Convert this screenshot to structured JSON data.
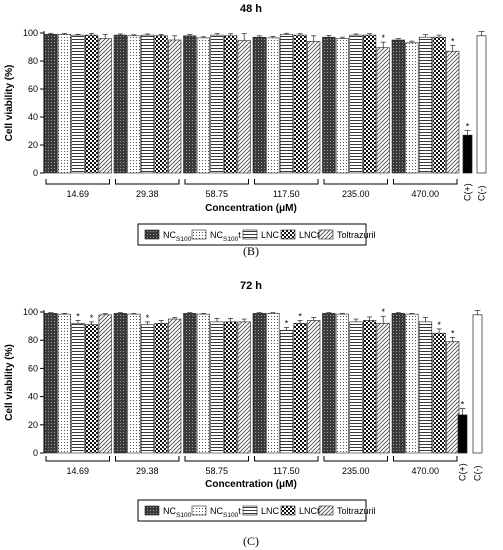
{
  "legend": {
    "items": [
      {
        "main": "NC",
        "sub": "S100",
        "suffix": "",
        "pattern": "dense"
      },
      {
        "main": "NC",
        "sub": "S100",
        "suffix": "t",
        "pattern": "dots"
      },
      {
        "main": "LNC",
        "sub": "",
        "suffix": "",
        "pattern": "hlines"
      },
      {
        "main": "LNCt",
        "sub": "",
        "suffix": "",
        "pattern": "checker"
      },
      {
        "main": "Toltrazuril",
        "sub": "",
        "suffix": "",
        "pattern": "diag"
      }
    ]
  },
  "chart_data": [
    {
      "type": "bar",
      "title": "48 h",
      "panel_label": "(B)",
      "ylabel": "Cell viability (%)",
      "xlabel": "Concentration (μM)",
      "ylim": [
        0,
        100
      ],
      "yticks": [
        0,
        20,
        40,
        60,
        80,
        100
      ],
      "categories": [
        "14.69",
        "29.38",
        "58.75",
        "117.50",
        "235.00",
        "470.00"
      ],
      "series": [
        {
          "name": "NCS100",
          "values": [
            99,
            98.5,
            98,
            97,
            97,
            95
          ],
          "errors": [
            0.8,
            0.8,
            0.8,
            1,
            1.2,
            1
          ],
          "significant": [
            false,
            false,
            false,
            false,
            false,
            false
          ]
        },
        {
          "name": "NCS100t",
          "values": [
            99,
            98,
            96.5,
            96.5,
            96,
            93
          ],
          "errors": [
            0.6,
            0.7,
            0.8,
            1,
            1,
            1.2
          ],
          "significant": [
            false,
            false,
            false,
            false,
            false,
            false
          ]
        },
        {
          "name": "LNC",
          "values": [
            98.5,
            98.5,
            98.5,
            99,
            98.5,
            97
          ],
          "errors": [
            0.6,
            0.8,
            1,
            0.8,
            0.8,
            1.8
          ],
          "significant": [
            false,
            false,
            false,
            false,
            false,
            false
          ]
        },
        {
          "name": "LNCt",
          "values": [
            98.5,
            98,
            98,
            98.5,
            98.5,
            97
          ],
          "errors": [
            1.2,
            1,
            1.5,
            1,
            1,
            1.5
          ],
          "significant": [
            false,
            false,
            false,
            false,
            false,
            false
          ]
        },
        {
          "name": "Toltrazuril",
          "values": [
            96,
            95,
            94.5,
            94,
            89.5,
            87
          ],
          "errors": [
            3,
            3,
            5,
            4,
            4,
            4
          ],
          "significant": [
            false,
            false,
            false,
            false,
            true,
            true
          ]
        }
      ],
      "controls": [
        {
          "label": "C(+)",
          "value": 27,
          "error": 3.5,
          "significant": true,
          "fill": "#000000"
        },
        {
          "label": "C(-)",
          "value": 98,
          "error": 3,
          "significant": false,
          "fill": "#ffffff"
        }
      ]
    },
    {
      "type": "bar",
      "title": "72 h",
      "panel_label": "(C)",
      "ylabel": "Cell viability (%)",
      "xlabel": "Concentration (μM)",
      "ylim": [
        0,
        100
      ],
      "yticks": [
        0,
        20,
        40,
        60,
        80,
        100
      ],
      "categories": [
        "14.69",
        "29.38",
        "58.75",
        "117.50",
        "235.00",
        "470.00"
      ],
      "series": [
        {
          "name": "NCS100",
          "values": [
            99,
            99,
            99,
            99,
            99,
            99
          ],
          "errors": [
            0.5,
            0.5,
            0.5,
            0.5,
            0.5,
            0.5
          ],
          "significant": [
            false,
            false,
            false,
            false,
            false,
            false
          ]
        },
        {
          "name": "NCS100t",
          "values": [
            98.5,
            98.5,
            98.5,
            99,
            98.5,
            98.5
          ],
          "errors": [
            0.5,
            0.5,
            0.5,
            0.5,
            0.5,
            0.5
          ],
          "significant": [
            false,
            false,
            false,
            false,
            false,
            false
          ]
        },
        {
          "name": "LNC",
          "values": [
            92,
            91,
            93,
            87,
            93,
            93
          ],
          "errors": [
            2,
            2,
            2.5,
            2,
            2,
            3
          ],
          "significant": [
            true,
            true,
            false,
            true,
            false,
            false
          ]
        },
        {
          "name": "LNCt",
          "values": [
            91,
            92,
            93,
            92,
            94,
            85
          ],
          "errors": [
            2,
            2,
            2.5,
            2,
            2.5,
            3
          ],
          "significant": [
            true,
            false,
            false,
            true,
            false,
            true
          ]
        },
        {
          "name": "Toltrazuril",
          "values": [
            98,
            95,
            93,
            94,
            92,
            79
          ],
          "errors": [
            1,
            1,
            2,
            2,
            5,
            3
          ],
          "significant": [
            false,
            false,
            false,
            false,
            true,
            true
          ]
        }
      ],
      "controls": [
        {
          "label": "C(+)",
          "value": 27,
          "error": 4.5,
          "significant": true,
          "fill": "#000000"
        },
        {
          "label": "C(-)",
          "value": 98,
          "error": 3,
          "significant": false,
          "fill": "#ffffff"
        }
      ]
    }
  ]
}
